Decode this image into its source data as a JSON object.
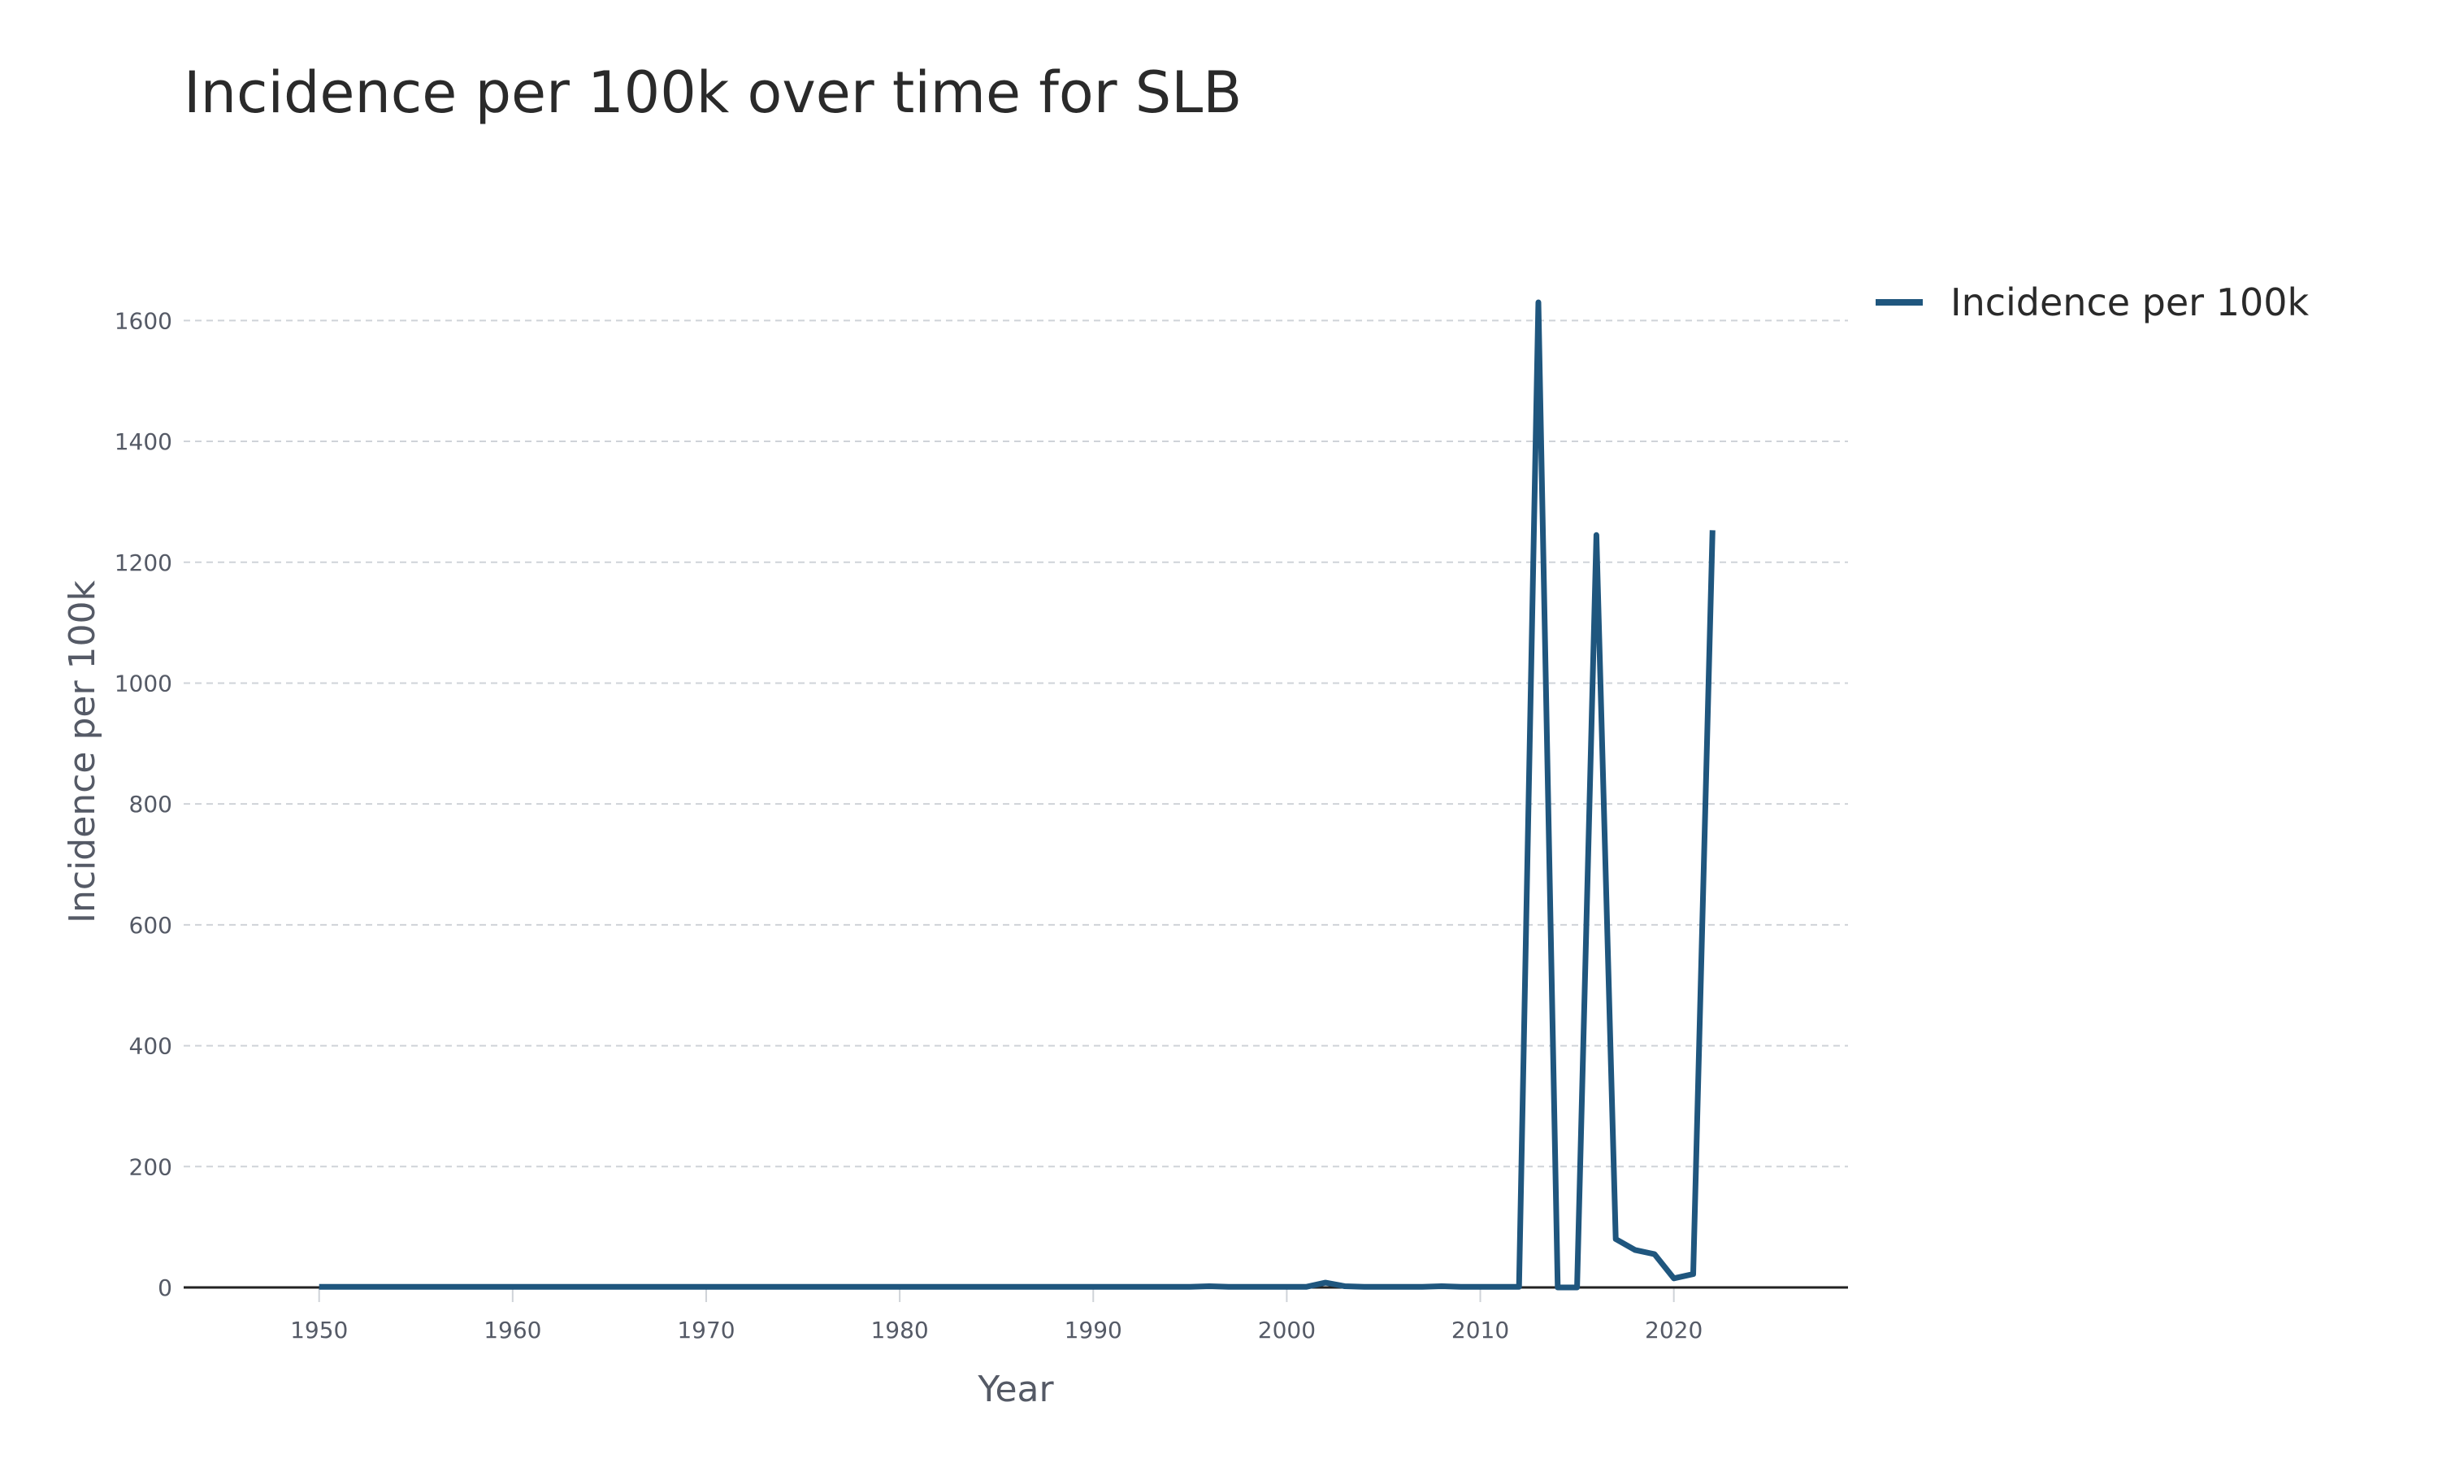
{
  "chart_data": {
    "type": "line",
    "title": "Incidence per 100k over time for SLB",
    "xlabel": "Year",
    "ylabel": "Incidence per 100k",
    "xlim": [
      1943,
      2029
    ],
    "ylim": [
      0,
      1700
    ],
    "xticks": [
      1950,
      1960,
      1970,
      1980,
      1990,
      2000,
      2010,
      2020
    ],
    "yticks": [
      0,
      200,
      400,
      600,
      800,
      1000,
      1200,
      1400,
      1600
    ],
    "grid": "horizontal dashed",
    "legend_position": "top-right",
    "colors": {
      "line": "#1f567e",
      "grid": "#cfd3d8",
      "zero_line": "#222222"
    },
    "series": [
      {
        "name": "Incidence per 100k",
        "x": [
          1950,
          1951,
          1952,
          1953,
          1954,
          1955,
          1956,
          1957,
          1958,
          1959,
          1960,
          1961,
          1962,
          1963,
          1964,
          1965,
          1966,
          1967,
          1968,
          1969,
          1970,
          1971,
          1972,
          1973,
          1974,
          1975,
          1976,
          1977,
          1978,
          1979,
          1980,
          1981,
          1982,
          1983,
          1984,
          1985,
          1986,
          1987,
          1988,
          1989,
          1990,
          1991,
          1992,
          1993,
          1994,
          1995,
          1996,
          1997,
          1998,
          1999,
          2000,
          2001,
          2002,
          2003,
          2004,
          2005,
          2006,
          2007,
          2008,
          2009,
          2010,
          2011,
          2012,
          2013,
          2014,
          2015,
          2016,
          2017,
          2018,
          2019,
          2020,
          2021,
          2022
        ],
        "y": [
          1,
          1,
          1,
          1,
          1,
          1,
          1,
          1,
          1,
          1,
          1,
          1,
          1,
          1,
          1,
          1,
          1,
          1,
          1,
          1,
          1,
          1,
          1,
          1,
          1,
          1,
          1,
          1,
          1,
          1,
          1,
          1,
          1,
          1,
          1,
          1,
          1,
          1,
          1,
          1,
          1,
          1,
          1,
          1,
          1,
          1,
          2,
          1,
          1,
          1,
          1,
          1,
          8,
          2,
          1,
          1,
          1,
          1,
          2,
          1,
          1,
          1,
          1,
          1630,
          0,
          0,
          1245,
          80,
          62,
          55,
          15,
          22,
          1253
        ]
      }
    ]
  }
}
